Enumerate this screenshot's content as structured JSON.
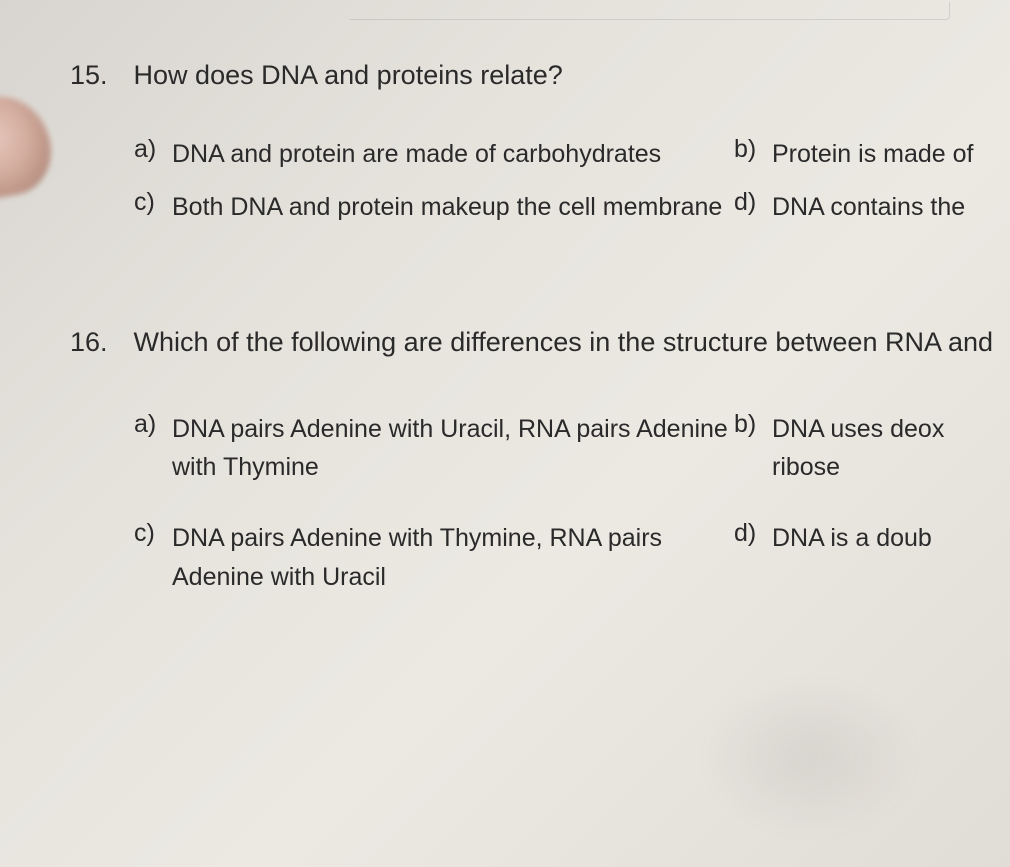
{
  "q15": {
    "number": "15.",
    "text": "How does DNA and proteins relate?",
    "a": {
      "letter": "a)",
      "text": "DNA and protein are made of carbohydrates"
    },
    "b": {
      "letter": "b)",
      "text": "Protein is made of"
    },
    "c": {
      "letter": "c)",
      "text": "Both DNA and protein makeup the cell membrane"
    },
    "d": {
      "letter": "d)",
      "text": "DNA contains the"
    }
  },
  "q16": {
    "number": "16.",
    "text": "Which of the following are differences in the structure between RNA and",
    "a": {
      "letter": "a)",
      "text": "DNA pairs Adenine with Uracil, RNA pairs Adenine with Thymine"
    },
    "b": {
      "letter": "b)",
      "text": "DNA uses deox"
    },
    "b2": "ribose",
    "c": {
      "letter": "c)",
      "text": "DNA pairs Adenine with Thymine, RNA pairs Adenine with Uracil"
    },
    "d": {
      "letter": "d)",
      "text": "DNA is a doub"
    }
  },
  "style": {
    "background": "#e5e2dc",
    "text_color": "#2a2a2a",
    "font_family": "Arial",
    "q_num_fontsize": 27,
    "q_text_fontsize": 27,
    "opt_fontsize": 25
  }
}
